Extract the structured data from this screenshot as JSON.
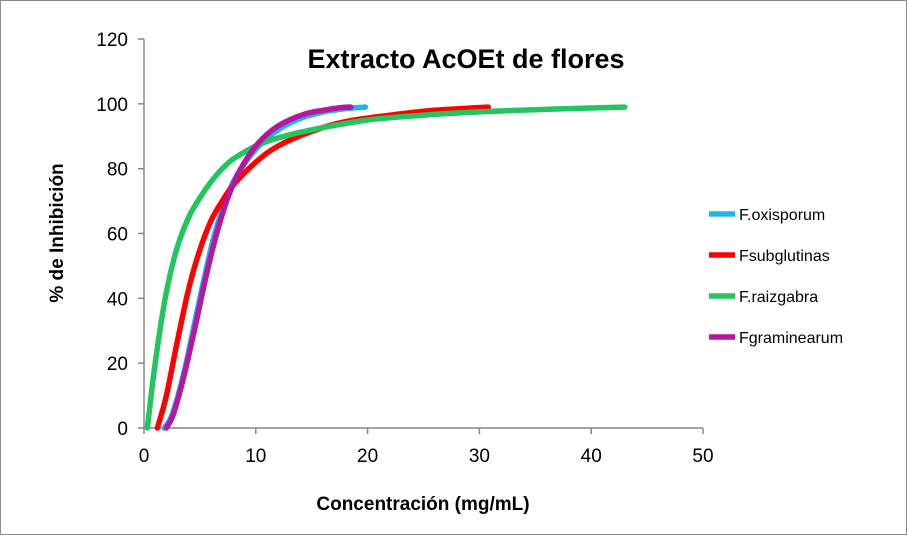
{
  "chart_data": {
    "type": "line",
    "title": "Extracto AcOEt de flores",
    "xlabel": "Concentración (mg/mL)",
    "ylabel": "% de Inhibición",
    "xlim": [
      0,
      50
    ],
    "ylim": [
      0,
      120
    ],
    "xticks": [
      0,
      10,
      20,
      30,
      40,
      50
    ],
    "yticks": [
      0,
      20,
      40,
      60,
      80,
      100,
      120
    ],
    "xtick_labels": [
      "0",
      "10",
      "20",
      "30",
      "40",
      "50"
    ],
    "ytick_labels": [
      "0",
      "20",
      "40",
      "60",
      "80",
      "100",
      "120"
    ],
    "grid": false,
    "legend_position": "right",
    "series": [
      {
        "name": "F.oxisporum",
        "color": "#1fb4ea",
        "x": [
          1.8,
          2.5,
          3.5,
          4.5,
          5.5,
          6.5,
          8,
          10,
          12,
          14,
          16,
          18,
          19.8
        ],
        "y": [
          0,
          4,
          16,
          32,
          48,
          62,
          76,
          86,
          92,
          95.5,
          97.5,
          98.5,
          99
        ]
      },
      {
        "name": "Fsubglutinas",
        "color": "#ff0000",
        "x": [
          1.2,
          2,
          3,
          4,
          5,
          6,
          7,
          8,
          10,
          12,
          15,
          18,
          22,
          26,
          30.8
        ],
        "y": [
          0,
          10,
          27,
          43,
          55,
          64,
          70,
          75,
          82,
          87,
          91.5,
          94.5,
          96.5,
          98,
          99
        ]
      },
      {
        "name": "F.raizgabra",
        "color": "#22c55e",
        "x": [
          0.3,
          1,
          2,
          3,
          4,
          5,
          6,
          7,
          8,
          10,
          12,
          15,
          20,
          25,
          30,
          35,
          40,
          43
        ],
        "y": [
          0,
          20,
          42,
          56,
          65,
          71,
          76,
          80,
          83,
          87,
          89.5,
          92,
          95,
          96.5,
          97.5,
          98.2,
          98.7,
          99
        ]
      },
      {
        "name": "Fgraminearum",
        "color": "#b5179e",
        "x": [
          2,
          2.6,
          3.5,
          4.5,
          5.5,
          6.5,
          7.5,
          8.5,
          10,
          11.5,
          13,
          14.5,
          16,
          17.5,
          18.5
        ],
        "y": [
          0,
          4,
          15,
          30,
          46,
          60,
          71,
          79,
          87,
          92,
          95,
          97,
          98,
          98.8,
          99
        ]
      }
    ]
  }
}
